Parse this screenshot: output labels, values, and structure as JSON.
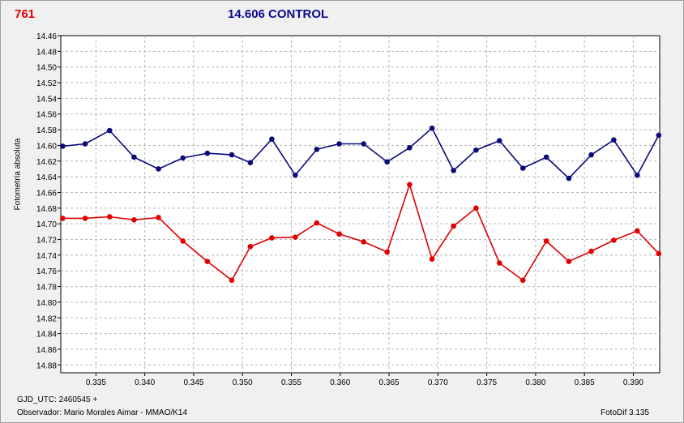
{
  "header": {
    "star_number": "761",
    "title": "14.606 CONTROL",
    "number_color": "#e00000",
    "title_color": "#0a0a8c"
  },
  "footer": {
    "gjd": "GJD_UTC: 2460545 +",
    "observer": "Observador: Mario Morales Aimar - MMAO/K14",
    "version": "FotoDif 3.135"
  },
  "chart_data": {
    "type": "line",
    "title": "14.606 CONTROL",
    "xlabel": "",
    "ylabel": "Fotometría absoluta",
    "xlim": [
      0.3314,
      0.3927
    ],
    "ylim": [
      14.46,
      14.89
    ],
    "y_inverted": true,
    "grid": true,
    "x_ticks": [
      "0.335",
      "0.340",
      "0.345",
      "0.350",
      "0.355",
      "0.360",
      "0.365",
      "0.370",
      "0.375",
      "0.380",
      "0.385",
      "0.390"
    ],
    "y_ticks": [
      "14.46",
      "14.48",
      "14.50",
      "14.52",
      "14.54",
      "14.56",
      "14.58",
      "14.60",
      "14.62",
      "14.64",
      "14.66",
      "14.68",
      "14.70",
      "14.72",
      "14.74",
      "14.76",
      "14.78",
      "14.80",
      "14.82",
      "14.84",
      "14.86",
      "14.88"
    ],
    "x": [
      0.3316,
      0.3339,
      0.3364,
      0.3389,
      0.3414,
      0.3439,
      0.3464,
      0.3489,
      0.3508,
      0.353,
      0.3554,
      0.3576,
      0.3599,
      0.3624,
      0.3648,
      0.3671,
      0.3694,
      0.3716,
      0.3739,
      0.3763,
      0.3787,
      0.3811,
      0.3834,
      0.3857,
      0.388,
      0.3904,
      0.3926
    ],
    "series": [
      {
        "color": "#0a0a7a",
        "values": [
          14.601,
          14.598,
          14.581,
          14.615,
          14.63,
          14.616,
          14.61,
          14.612,
          14.622,
          14.592,
          14.638,
          14.605,
          14.598,
          14.598,
          14.621,
          14.603,
          14.578,
          14.632,
          14.606,
          14.594,
          14.629,
          14.615,
          14.642,
          14.612,
          14.593,
          14.638,
          14.587
        ]
      },
      {
        "color": "#e00000",
        "values": [
          14.693,
          14.693,
          14.691,
          14.695,
          14.692,
          14.722,
          14.748,
          14.772,
          14.729,
          14.718,
          14.717,
          14.699,
          14.713,
          14.723,
          14.736,
          14.65,
          14.745,
          14.703,
          14.68,
          14.75,
          14.772,
          14.722,
          14.748,
          14.735,
          14.721,
          14.709,
          14.738
        ]
      }
    ]
  }
}
